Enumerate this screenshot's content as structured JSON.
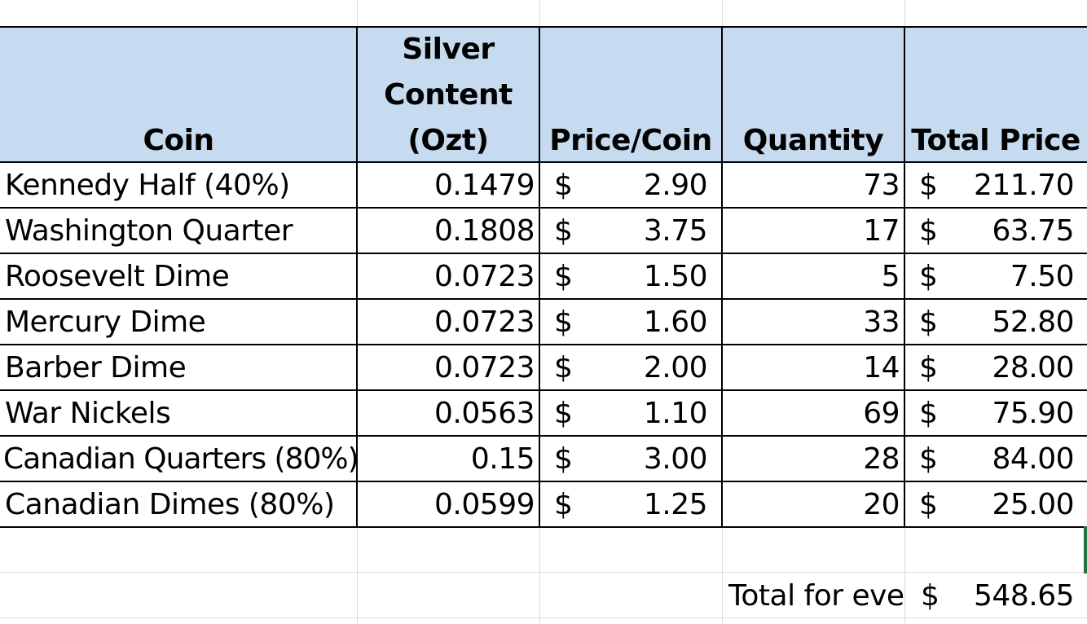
{
  "header": {
    "coin": "Coin",
    "silver_line1": "Silver",
    "silver_line2": "Content",
    "silver_line3": "(Ozt)",
    "price_per_coin": "Price/Coin",
    "quantity": "Quantity",
    "total_price": "Total Price"
  },
  "currency_symbol": "$",
  "rows": [
    {
      "coin": "Kennedy Half (40%)",
      "silver": "0.1479",
      "price": "2.90",
      "qty": "73",
      "total": "211.70"
    },
    {
      "coin": "Washington Quarter",
      "silver": "0.1808",
      "price": "3.75",
      "qty": "17",
      "total": "63.75"
    },
    {
      "coin": "Roosevelt Dime",
      "silver": "0.0723",
      "price": "1.50",
      "qty": "5",
      "total": "7.50"
    },
    {
      "coin": "Mercury Dime",
      "silver": "0.0723",
      "price": "1.60",
      "qty": "33",
      "total": "52.80"
    },
    {
      "coin": "Barber Dime",
      "silver": "0.0723",
      "price": "2.00",
      "qty": "14",
      "total": "28.00"
    },
    {
      "coin": "War Nickels",
      "silver": "0.0563",
      "price": "1.10",
      "qty": "69",
      "total": "75.90"
    },
    {
      "coin": "Canadian Quarters (80%)",
      "silver": "0.15",
      "price": "3.00",
      "qty": "28",
      "total": "84.00"
    },
    {
      "coin": "Canadian Dimes (80%)",
      "silver": "0.0599",
      "price": "1.25",
      "qty": "20",
      "total": "25.00"
    }
  ],
  "footer": {
    "label": "Total for eve",
    "total": "548.65"
  },
  "colors": {
    "header_fill": "#c6dbef",
    "gridline": "#d9d9d9",
    "selection": "#217346"
  }
}
